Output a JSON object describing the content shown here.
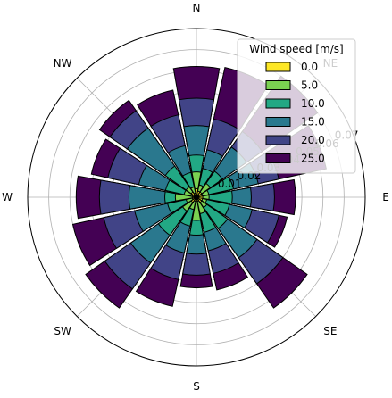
{
  "chart_data": {
    "type": "wind-rose",
    "title": "",
    "directions": [
      "N",
      "NNE",
      "NE",
      "ENE",
      "E",
      "ESE",
      "SE",
      "SSE",
      "S",
      "SSW",
      "SW",
      "WSW",
      "W",
      "WNW",
      "NW",
      "NNW"
    ],
    "direction_labels": [
      "N",
      "NE",
      "E",
      "SE",
      "S",
      "SW",
      "W",
      "NW"
    ],
    "radial_ticks": [
      0.01,
      0.02,
      0.03,
      0.04,
      0.05,
      0.06,
      0.07
    ],
    "radial_tick_labels": [
      "0.01",
      "0.02",
      "0.03",
      "0.04",
      "0.05",
      "0.06",
      "0.07"
    ],
    "rmax": 0.08,
    "grid": true,
    "legend": {
      "title": "Wind speed [m/s]",
      "placement": "top-right"
    },
    "series": [
      {
        "name": "0.0",
        "color": "#fde725",
        "values": [
          0.004,
          0.003,
          0.003,
          0.003,
          0.003,
          0.003,
          0.003,
          0.002,
          0.002,
          0.002,
          0.003,
          0.002,
          0.002,
          0.002,
          0.003,
          0.002
        ]
      },
      {
        "name": "5.0",
        "color": "#7ad151",
        "values": [
          0.012,
          0.006,
          0.008,
          0.006,
          0.006,
          0.005,
          0.006,
          0.008,
          0.011,
          0.006,
          0.008,
          0.005,
          0.01,
          0.006,
          0.006,
          0.005
        ]
      },
      {
        "name": "10.0",
        "color": "#22a884",
        "values": [
          0.02,
          0.014,
          0.015,
          0.018,
          0.017,
          0.016,
          0.018,
          0.017,
          0.018,
          0.014,
          0.022,
          0.014,
          0.015,
          0.015,
          0.018,
          0.012
        ]
      },
      {
        "name": "15.0",
        "color": "#2a788e",
        "values": [
          0.034,
          0.023,
          0.029,
          0.03,
          0.026,
          0.027,
          0.035,
          0.026,
          0.027,
          0.027,
          0.038,
          0.03,
          0.032,
          0.028,
          0.04,
          0.025
        ]
      },
      {
        "name": "20.0",
        "color": "#414487",
        "values": [
          0.047,
          0.038,
          0.038,
          0.04,
          0.037,
          0.04,
          0.05,
          0.037,
          0.037,
          0.04,
          0.053,
          0.045,
          0.046,
          0.043,
          0.05,
          0.04
        ]
      },
      {
        "name": "25.0",
        "color": "#440154",
        "values": [
          0.062,
          0.063,
          0.07,
          0.063,
          0.047,
          0.044,
          0.064,
          0.045,
          0.043,
          0.053,
          0.064,
          0.06,
          0.057,
          0.051,
          0.056,
          0.052
        ]
      }
    ]
  }
}
